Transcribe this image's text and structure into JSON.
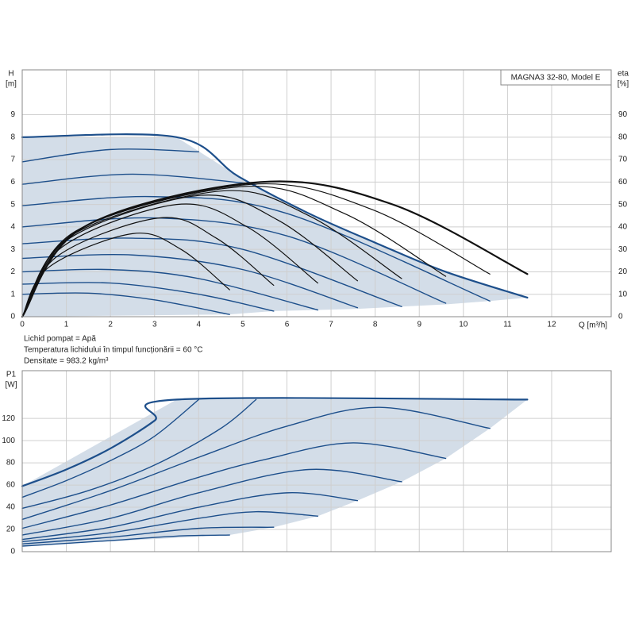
{
  "chart_data": [
    {
      "type": "line",
      "annotation": "MAGNA3 32-80, Model E",
      "ylabel": "H",
      "yunit": "[m]",
      "y2label": "eta",
      "y2unit": "[%]",
      "xlabel": "Q [m³/h]",
      "notes": [
        "Lichid pompat = Apă",
        "Temperatura lichidului în timpul funcționării = 60 °C",
        "Densitate = 983.2 kg/m³"
      ],
      "xlim": [
        0,
        13.35
      ],
      "ylim": [
        0,
        11
      ],
      "y2lim": [
        0,
        110
      ],
      "xticks": [
        0,
        1,
        2,
        3,
        4,
        5,
        6,
        7,
        8,
        9,
        10,
        11,
        12
      ],
      "yticks": [
        0,
        1,
        2,
        3,
        4,
        5,
        6,
        7,
        8,
        9
      ],
      "y2ticks": [
        0,
        10,
        20,
        30,
        40,
        50,
        60,
        70,
        80,
        90
      ],
      "grid": true,
      "show_xtick_labels": true,
      "area": {
        "color": "#d3dde8",
        "x": [
          0,
          3.5,
          4.9,
          6.5,
          8,
          9.6,
          11.45,
          10.6,
          9.6,
          8.6,
          7.6,
          6.7,
          5.7,
          4.7,
          0
        ],
        "values": [
          8,
          8,
          6.25,
          4.6,
          3.3,
          2.0,
          0.85,
          0.7,
          0.55,
          0.45,
          0.35,
          0.3,
          0.25,
          0.1,
          0
        ]
      },
      "series": [
        {
          "color": "#1d4f8b",
          "width": 2.2,
          "x": [
            0,
            3.5,
            4.9,
            6.5,
            8,
            9.6,
            11.45
          ],
          "values": [
            8,
            8,
            6.25,
            4.6,
            3.3,
            2.0,
            0.85
          ]
        },
        {
          "color": "#1d4f8b",
          "width": 1.4,
          "x": [
            0,
            2,
            4
          ],
          "values": [
            6.9,
            7.45,
            7.35
          ]
        },
        {
          "color": "#1d4f8b",
          "width": 1.4,
          "x": [
            0,
            2.5,
            5.3
          ],
          "values": [
            5.9,
            6.35,
            5.9
          ]
        },
        {
          "color": "#1d4f8b",
          "width": 1.4,
          "x": [
            0,
            3,
            6,
            10.6
          ],
          "values": [
            4.95,
            5.35,
            4.6,
            0.7
          ]
        },
        {
          "color": "#1d4f8b",
          "width": 1.4,
          "x": [
            0,
            3,
            6,
            9.6
          ],
          "values": [
            4.0,
            4.4,
            3.6,
            0.6
          ]
        },
        {
          "color": "#1d4f8b",
          "width": 1.4,
          "x": [
            0,
            2.5,
            5,
            8.6
          ],
          "values": [
            3.25,
            3.5,
            3.0,
            0.45
          ]
        },
        {
          "color": "#1d4f8b",
          "width": 1.4,
          "x": [
            0,
            2.5,
            5,
            7.6
          ],
          "values": [
            2.6,
            2.75,
            2.1,
            0.4
          ]
        },
        {
          "color": "#1d4f8b",
          "width": 1.4,
          "x": [
            0,
            2,
            4,
            6.7
          ],
          "values": [
            2.0,
            2.1,
            1.7,
            0.3
          ]
        },
        {
          "color": "#1d4f8b",
          "width": 1.4,
          "x": [
            0,
            2,
            4,
            5.7
          ],
          "values": [
            1.45,
            1.5,
            1.0,
            0.25
          ]
        },
        {
          "color": "#1d4f8b",
          "width": 1.4,
          "x": [
            0,
            1.5,
            3,
            4.7
          ],
          "values": [
            1.0,
            1.05,
            0.75,
            0.1
          ]
        },
        {
          "color": "#111111",
          "width": 1.2,
          "axis": "y2",
          "x": [
            0,
            0.6,
            2.5,
            3.6,
            4.7
          ],
          "values": [
            0,
            22,
            37,
            30,
            12
          ]
        },
        {
          "color": "#111111",
          "width": 1.2,
          "axis": "y2",
          "x": [
            0,
            0.8,
            3.1,
            4.4,
            5.7
          ],
          "values": [
            0,
            27,
            44,
            35,
            14
          ]
        },
        {
          "color": "#111111",
          "width": 1.2,
          "axis": "y2",
          "x": [
            0,
            0.9,
            3.5,
            5.1,
            6.7
          ],
          "values": [
            0,
            31,
            50,
            40,
            15
          ]
        },
        {
          "color": "#111111",
          "width": 1.2,
          "axis": "y2",
          "x": [
            0,
            1,
            4,
            5.8,
            7.6
          ],
          "values": [
            0,
            34,
            54,
            43,
            16
          ]
        },
        {
          "color": "#111111",
          "width": 1.2,
          "axis": "y2",
          "x": [
            0,
            1.1,
            4.5,
            6.5,
            8.6
          ],
          "values": [
            0,
            36,
            56,
            45,
            17
          ]
        },
        {
          "color": "#111111",
          "width": 1.2,
          "axis": "y2",
          "x": [
            0,
            1.2,
            5,
            7.3,
            9.6
          ],
          "values": [
            0,
            38,
            58,
            46,
            18
          ]
        },
        {
          "color": "#111111",
          "width": 1.2,
          "axis": "y2",
          "x": [
            0,
            1.3,
            5.2,
            7.9,
            10.6
          ],
          "values": [
            0,
            39,
            59,
            48,
            19
          ]
        },
        {
          "color": "#111111",
          "width": 2.2,
          "axis": "y2",
          "x": [
            0,
            1.4,
            5.4,
            8.4,
            11.45
          ],
          "values": [
            0,
            40,
            60,
            50,
            19
          ]
        }
      ]
    },
    {
      "type": "line",
      "ylabel": "P1",
      "yunit": "[W]",
      "xlim": [
        0,
        13.35
      ],
      "ylim": [
        0,
        163
      ],
      "xticks": [
        0,
        1,
        2,
        3,
        4,
        5,
        6,
        7,
        8,
        9,
        10,
        11,
        12
      ],
      "yticks": [
        0,
        20,
        40,
        60,
        80,
        100,
        120
      ],
      "grid": true,
      "show_xtick_labels": false,
      "area": {
        "color": "#d3dde8",
        "x": [
          0,
          3.5,
          11.45,
          10.6,
          9.6,
          8.6,
          7.6,
          6.7,
          5.7,
          4.7,
          0
        ],
        "values": [
          59,
          137,
          137,
          111,
          84,
          63,
          46,
          32,
          22,
          15,
          5
        ]
      },
      "series": [
        {
          "color": "#1d4f8b",
          "width": 2.2,
          "x": [
            0,
            1,
            2,
            3,
            3.5,
            11.45
          ],
          "values": [
            59,
            74,
            93,
            118,
            137,
            137
          ]
        },
        {
          "color": "#1d4f8b",
          "width": 1.4,
          "x": [
            0,
            1,
            2,
            3,
            4
          ],
          "values": [
            49,
            64,
            82,
            104,
            137
          ]
        },
        {
          "color": "#1d4f8b",
          "width": 1.4,
          "x": [
            0,
            1.5,
            3,
            4.5,
            5.3
          ],
          "values": [
            39,
            55,
            78,
            111,
            137
          ]
        },
        {
          "color": "#1d4f8b",
          "width": 1.4,
          "x": [
            0,
            2,
            4,
            6,
            8.1,
            10.6
          ],
          "values": [
            29,
            55,
            85,
            113,
            130,
            111
          ]
        },
        {
          "color": "#1d4f8b",
          "width": 1.4,
          "x": [
            0,
            2,
            4,
            5.5,
            7.5,
            9.6
          ],
          "values": [
            21,
            42,
            67,
            83,
            98,
            84
          ]
        },
        {
          "color": "#1d4f8b",
          "width": 1.4,
          "x": [
            0,
            2,
            4,
            6.5,
            8.6
          ],
          "values": [
            15,
            30,
            53,
            74,
            63
          ]
        },
        {
          "color": "#1d4f8b",
          "width": 1.4,
          "x": [
            0,
            2,
            4,
            6,
            7.6
          ],
          "values": [
            11,
            22,
            40,
            53,
            46
          ]
        },
        {
          "color": "#1d4f8b",
          "width": 1.4,
          "x": [
            0,
            2,
            4,
            5.3,
            6.7
          ],
          "values": [
            9,
            17,
            30,
            36,
            32
          ]
        },
        {
          "color": "#1d4f8b",
          "width": 1.4,
          "x": [
            0,
            2,
            4,
            5.7
          ],
          "values": [
            7,
            13,
            21,
            22
          ]
        },
        {
          "color": "#1d4f8b",
          "width": 1.4,
          "x": [
            0,
            2,
            3.5,
            4.7
          ],
          "values": [
            5,
            10,
            14,
            15
          ]
        }
      ]
    }
  ]
}
